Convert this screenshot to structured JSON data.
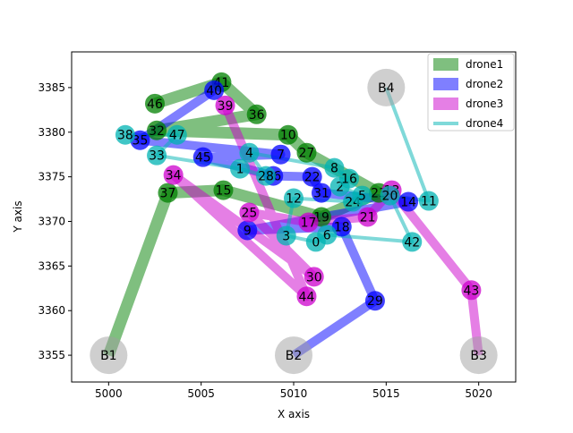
{
  "chart_data": {
    "type": "scatter",
    "title": "",
    "xlabel": "X axis",
    "ylabel": "Y axis",
    "xlim": [
      4998,
      5022
    ],
    "ylim": [
      3352,
      3389
    ],
    "xticks": [
      5000,
      5005,
      5010,
      5015,
      5020
    ],
    "yticks": [
      3355,
      3360,
      3365,
      3370,
      3375,
      3380,
      3385
    ],
    "grid": false,
    "legend_position": "top-right",
    "bases": [
      {
        "label": "B1",
        "x": 5000,
        "y": 3355
      },
      {
        "label": "B2",
        "x": 5010,
        "y": 3355
      },
      {
        "label": "B3",
        "x": 5020,
        "y": 3355
      },
      {
        "label": "B4",
        "x": 5015,
        "y": 3385
      }
    ],
    "series": [
      {
        "name": "drone1",
        "color": "#008000",
        "line_width": 13,
        "path": [
          {
            "label": "B1",
            "x": 5000,
            "y": 3355
          },
          {
            "label": "37",
            "x": 5003.2,
            "y": 3373.2
          },
          {
            "label": "15",
            "x": 5006.2,
            "y": 3373.5
          },
          {
            "label": "19",
            "x": 5011.5,
            "y": 3370.5
          },
          {
            "label": "23",
            "x": 5014.6,
            "y": 3373.2
          },
          {
            "label": "27",
            "x": 5010.7,
            "y": 3377.7
          },
          {
            "label": "10",
            "x": 5009.7,
            "y": 3379.7
          },
          {
            "label": "32",
            "x": 5002.6,
            "y": 3380.2
          },
          {
            "label": "36",
            "x": 5008,
            "y": 3382
          },
          {
            "label": "41",
            "x": 5006.1,
            "y": 3385.6
          },
          {
            "label": "46",
            "x": 5002.5,
            "y": 3383.2
          }
        ]
      },
      {
        "name": "drone2",
        "color": "#0000ff",
        "line_width": 10,
        "path": [
          {
            "label": "B2",
            "x": 5010,
            "y": 3355
          },
          {
            "label": "29",
            "x": 5014.4,
            "y": 3361.1
          },
          {
            "label": "18",
            "x": 5012.6,
            "y": 3369.4
          },
          {
            "label": "9",
            "x": 5007.5,
            "y": 3369
          },
          {
            "label": "14",
            "x": 5016.2,
            "y": 3372.2
          },
          {
            "label": "31",
            "x": 5011.5,
            "y": 3373.2
          },
          {
            "label": "22",
            "x": 5011,
            "y": 3375
          },
          {
            "label": "26",
            "x": 5008.9,
            "y": 3375.1
          },
          {
            "label": "45",
            "x": 5005.1,
            "y": 3377.2
          },
          {
            "label": "7",
            "x": 5009.3,
            "y": 3377.5
          },
          {
            "label": "35",
            "x": 5001.7,
            "y": 3379.1
          },
          {
            "label": "40",
            "x": 5005.7,
            "y": 3384.7
          }
        ]
      },
      {
        "name": "drone3",
        "color": "#cc00cc",
        "line_width": 10,
        "path": [
          {
            "label": "B3",
            "x": 5020,
            "y": 3355
          },
          {
            "label": "43",
            "x": 5019.6,
            "y": 3362.3
          },
          {
            "label": "13",
            "x": 5015.3,
            "y": 3373.5
          },
          {
            "label": "21",
            "x": 5014.0,
            "y": 3370.5
          },
          {
            "label": "17",
            "x": 5010.8,
            "y": 3369.9
          },
          {
            "label": "25",
            "x": 5007.6,
            "y": 3371.0
          },
          {
            "label": "30",
            "x": 5011.1,
            "y": 3363.8
          },
          {
            "label": "34",
            "x": 5003.5,
            "y": 3375.2
          },
          {
            "label": "44",
            "x": 5010.7,
            "y": 3361.6
          },
          {
            "label": "39",
            "x": 5006.3,
            "y": 3383
          }
        ]
      },
      {
        "name": "drone4",
        "color": "#00b3b3",
        "line_width": 4,
        "path": [
          {
            "label": "B4",
            "x": 5015,
            "y": 3385
          },
          {
            "label": "11",
            "x": 5017.3,
            "y": 3372.3
          },
          {
            "label": "20",
            "x": 5015.2,
            "y": 3372.9
          },
          {
            "label": "42",
            "x": 5016.4,
            "y": 3367.7
          },
          {
            "label": "6",
            "x": 5011.8,
            "y": 3368.5
          },
          {
            "label": "0",
            "x": 5011.2,
            "y": 3367.7
          },
          {
            "label": "3",
            "x": 5009.6,
            "y": 3368.4
          },
          {
            "label": "12",
            "x": 5010,
            "y": 3372.6
          },
          {
            "label": "24",
            "x": 5013.2,
            "y": 3372.2
          },
          {
            "label": "5",
            "x": 5013.7,
            "y": 3372.9
          },
          {
            "label": "2",
            "x": 5012.5,
            "y": 3373.9
          },
          {
            "label": "16",
            "x": 5013,
            "y": 3374.8
          },
          {
            "label": "8",
            "x": 5012.2,
            "y": 3376.0
          },
          {
            "label": "4",
            "x": 5007.6,
            "y": 3377.7
          },
          {
            "label": "28",
            "x": 5008.5,
            "y": 3375.1
          },
          {
            "label": "1",
            "x": 5007.1,
            "y": 3375.9
          },
          {
            "label": "33",
            "x": 5002.6,
            "y": 3377.4
          },
          {
            "label": "47",
            "x": 5003.7,
            "y": 3379.7
          },
          {
            "label": "38",
            "x": 5000.9,
            "y": 3379.7
          }
        ]
      }
    ]
  }
}
